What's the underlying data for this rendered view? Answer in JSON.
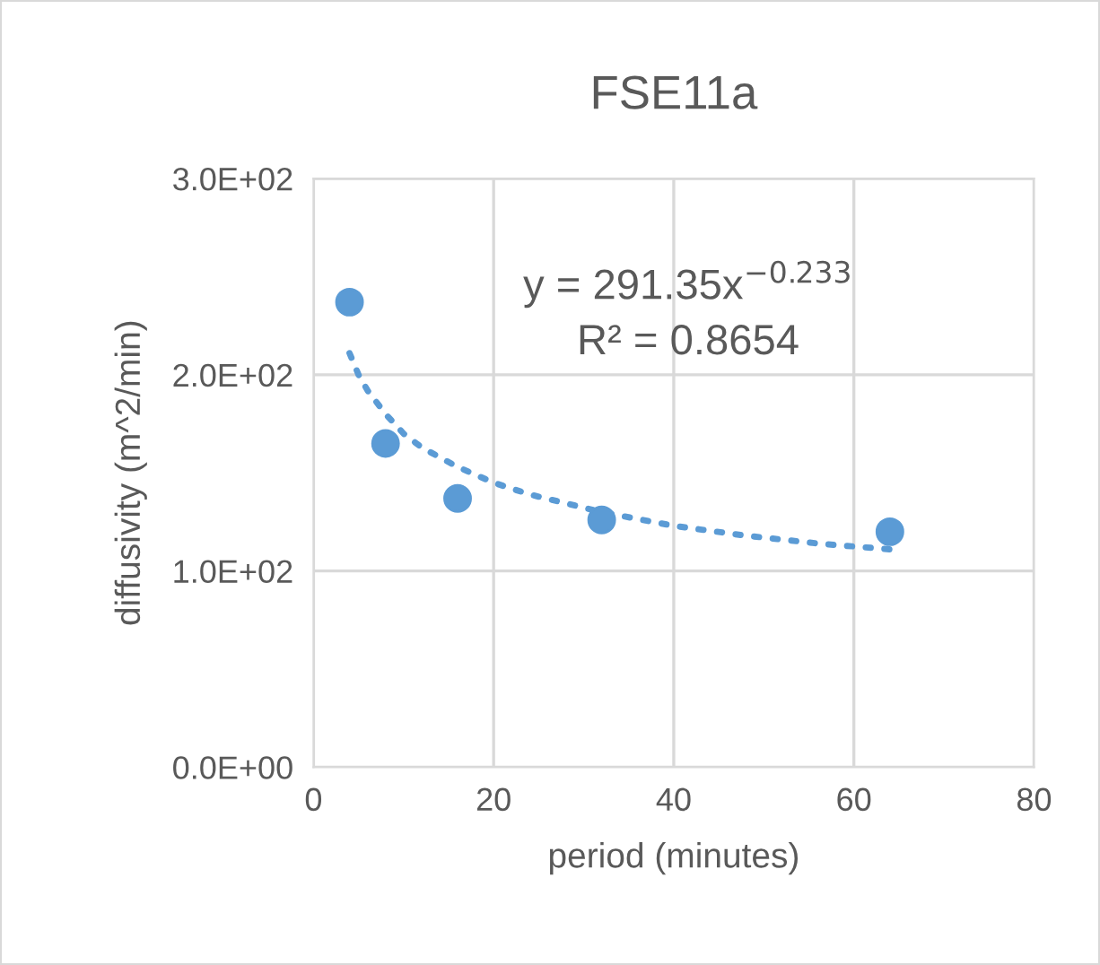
{
  "chart_data": {
    "type": "scatter",
    "title": "FSE11a",
    "xlabel": "period (minutes)",
    "ylabel": "diffusivity (m^2/min)",
    "xlim": [
      0,
      80
    ],
    "xticks": [
      0,
      20,
      40,
      60,
      80
    ],
    "ylim": [
      0,
      300
    ],
    "yticks": [
      {
        "value": 0,
        "label": "0.0E+00"
      },
      {
        "value": 100,
        "label": "1.0E+02"
      },
      {
        "value": 200,
        "label": "2.0E+02"
      },
      {
        "value": 300,
        "label": "3.0E+02"
      }
    ],
    "grid": true,
    "legend": false,
    "series": [
      {
        "color": "#5b9bd5",
        "marker": "circle",
        "x": [
          4,
          8,
          16,
          32,
          64
        ],
        "values": [
          237,
          165,
          137,
          126,
          120
        ]
      },
      {
        "type": "line",
        "color": "#5b9bd5",
        "line_style": "dotted",
        "marker": "none",
        "x": [
          4,
          5,
          6,
          8,
          10,
          12,
          16,
          20,
          24,
          32,
          40,
          48,
          56,
          64
        ],
        "values": [
          211,
          200,
          192,
          180,
          170,
          163,
          153,
          145,
          139,
          130,
          123,
          118,
          114,
          111
        ]
      }
    ],
    "annotations": [
      "y = 291.35x$^{−0.233}$",
      "R² = 0.8654"
    ]
  }
}
